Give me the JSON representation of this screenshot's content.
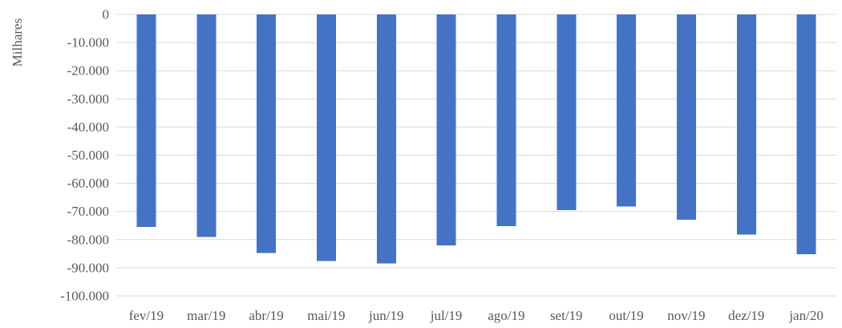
{
  "chart_data": {
    "type": "bar",
    "title": "",
    "xlabel": "",
    "ylabel": "Milhares",
    "categories": [
      "fev/19",
      "mar/19",
      "abr/19",
      "mai/19",
      "jun/19",
      "jul/19",
      "ago/19",
      "set/19",
      "out/19",
      "nov/19",
      "dez/19",
      "jan/20"
    ],
    "values": [
      -75500,
      -79000,
      -84800,
      -87600,
      -88500,
      -82100,
      -75200,
      -69500,
      -68300,
      -73000,
      -78200,
      -85200
    ],
    "ylim": [
      -100000,
      0
    ],
    "yticks": [
      0,
      -10000,
      -20000,
      -30000,
      -40000,
      -50000,
      -60000,
      -70000,
      -80000,
      -90000,
      -100000
    ],
    "ytick_labels": [
      "0",
      "-10.000",
      "-20.000",
      "-30.000",
      "-40.000",
      "-50.000",
      "-60.000",
      "-70.000",
      "-80.000",
      "-90.000",
      "-100.000"
    ],
    "grid": true,
    "bar_color": "#4472c4",
    "grid_color": "#d9d9d9",
    "label_color": "#595959"
  }
}
